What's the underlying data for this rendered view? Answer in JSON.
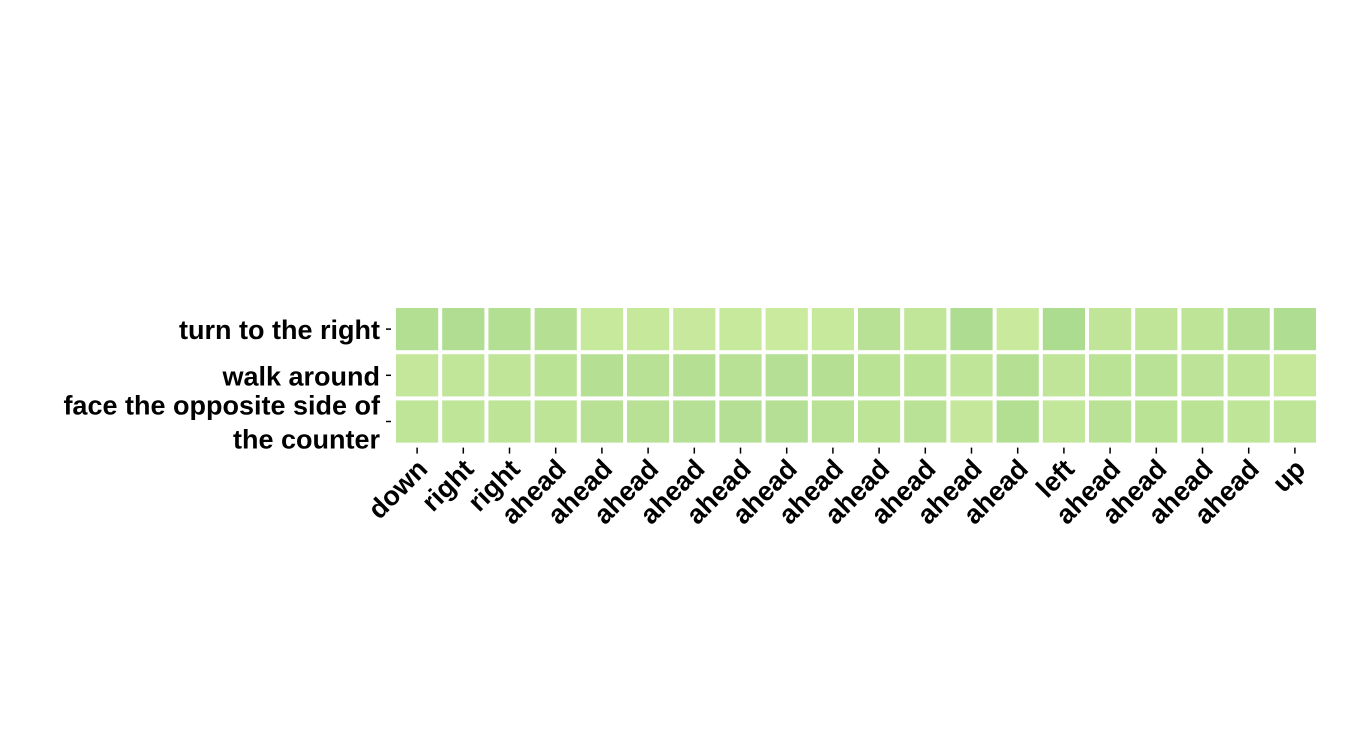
{
  "chart_data": {
    "type": "heatmap",
    "title": "",
    "xlabel": "",
    "ylabel": "",
    "grid": false,
    "legend": "none",
    "x_categories": [
      "down",
      "right",
      "right",
      "ahead",
      "ahead",
      "ahead",
      "ahead",
      "ahead",
      "ahead",
      "ahead",
      "ahead",
      "ahead",
      "ahead",
      "ahead",
      "left",
      "ahead",
      "ahead",
      "ahead",
      "ahead",
      "up"
    ],
    "rows": [
      {
        "label_lines": [
          "turn to the right"
        ],
        "values": [
          0.62,
          0.68,
          0.62,
          0.58,
          0.25,
          0.28,
          0.22,
          0.25,
          0.18,
          0.25,
          0.52,
          0.35,
          0.72,
          0.2,
          0.75,
          0.38,
          0.38,
          0.42,
          0.58,
          0.7
        ]
      },
      {
        "label_lines": [
          "walk around"
        ],
        "values": [
          0.3,
          0.35,
          0.38,
          0.48,
          0.58,
          0.52,
          0.58,
          0.52,
          0.6,
          0.58,
          0.48,
          0.48,
          0.4,
          0.58,
          0.38,
          0.48,
          0.5,
          0.45,
          0.42,
          0.28
        ]
      },
      {
        "label_lines": [
          "face the opposite side of",
          "the counter"
        ],
        "values": [
          0.4,
          0.4,
          0.42,
          0.42,
          0.52,
          0.52,
          0.56,
          0.6,
          0.6,
          0.5,
          0.42,
          0.5,
          0.3,
          0.62,
          0.34,
          0.5,
          0.48,
          0.48,
          0.4,
          0.4
        ]
      }
    ],
    "value_range": [
      0,
      1
    ],
    "colormap": {
      "low": "#d4efa2",
      "high": "#9fd58a"
    }
  }
}
